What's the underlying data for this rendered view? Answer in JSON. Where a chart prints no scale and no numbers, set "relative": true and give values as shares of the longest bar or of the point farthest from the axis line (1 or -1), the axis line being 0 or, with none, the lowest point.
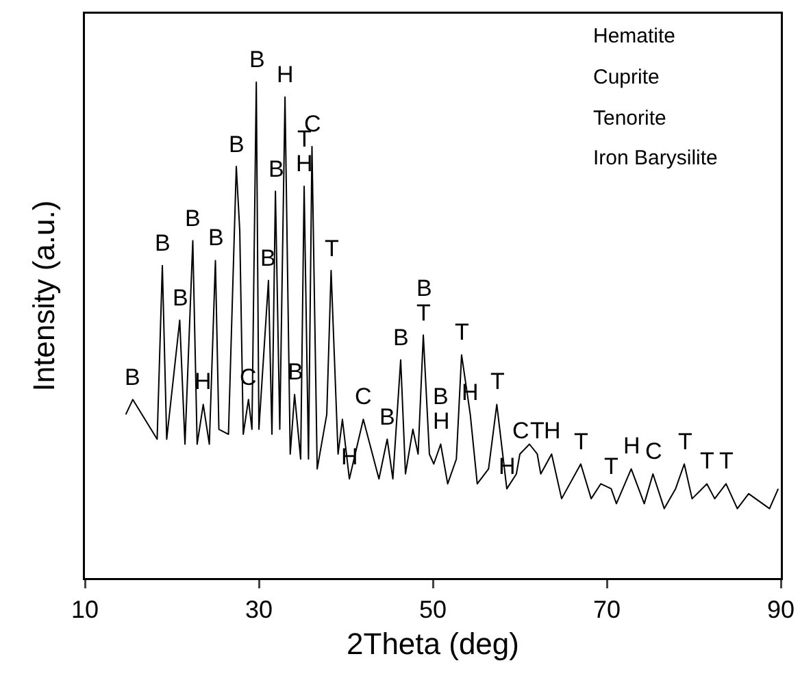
{
  "chart_data": {
    "type": "line",
    "relative": true,
    "xlabel": "2Theta (deg)",
    "ylabel": "Intensity (a.u.)",
    "xlim": [
      10,
      90
    ],
    "xticks": [
      10,
      30,
      50,
      70,
      90
    ],
    "grid": false,
    "marker": "none",
    "line_style": "solid",
    "series": [
      {
        "color": "#000000",
        "x": [
          14.7,
          15.5,
          18.3,
          18.9,
          19.4,
          20.9,
          21.5,
          22.4,
          22.9,
          23.6,
          24.3,
          25.0,
          25.4,
          26.5,
          27.4,
          27.8,
          28.2,
          28.8,
          29.2,
          29.7,
          30.0,
          31.1,
          31.5,
          31.9,
          32.4,
          33.0,
          33.6,
          34.1,
          34.8,
          35.2,
          35.7,
          36.1,
          36.7,
          37.8,
          38.3,
          39.1,
          39.6,
          40.4,
          42.0,
          43.8,
          44.75,
          45.4,
          46.3,
          46.85,
          47.7,
          48.3,
          48.9,
          49.6,
          50.1,
          50.9,
          51.7,
          52.7,
          53.3,
          54.3,
          55.1,
          56.4,
          57.35,
          58.5,
          59.6,
          60.0,
          61.1,
          62.0,
          62.4,
          63.65,
          64.8,
          67.0,
          68.2,
          69.3,
          70.5,
          71.1,
          72.8,
          74.3,
          75.3,
          76.6,
          77.9,
          78.9,
          79.8,
          81.5,
          82.4,
          83.7,
          85.0,
          86.3,
          88.7,
          89.7
        ],
        "values": [
          0.33,
          0.36,
          0.28,
          0.63,
          0.28,
          0.52,
          0.27,
          0.68,
          0.27,
          0.35,
          0.27,
          0.64,
          0.3,
          0.29,
          0.83,
          0.7,
          0.29,
          0.36,
          0.3,
          1.0,
          0.3,
          0.6,
          0.29,
          0.78,
          0.3,
          0.97,
          0.25,
          0.37,
          0.24,
          0.79,
          0.24,
          0.87,
          0.22,
          0.33,
          0.62,
          0.25,
          0.32,
          0.2,
          0.32,
          0.2,
          0.28,
          0.2,
          0.44,
          0.21,
          0.3,
          0.25,
          0.49,
          0.25,
          0.23,
          0.27,
          0.19,
          0.24,
          0.45,
          0.33,
          0.19,
          0.22,
          0.35,
          0.18,
          0.21,
          0.25,
          0.27,
          0.25,
          0.21,
          0.25,
          0.16,
          0.23,
          0.16,
          0.19,
          0.18,
          0.15,
          0.22,
          0.15,
          0.21,
          0.14,
          0.18,
          0.23,
          0.16,
          0.19,
          0.16,
          0.19,
          0.14,
          0.17,
          0.14,
          0.18
        ]
      }
    ],
    "annotations": [
      "Hematite",
      "Cuprite",
      "Tenorite",
      "Iron Barysilite",
      {
        "text": "B",
        "x": 15.5,
        "y": 0.36
      },
      {
        "text": "B",
        "x": 18.9,
        "y": 0.63
      },
      {
        "text": "B",
        "x": 20.9,
        "y": 0.52
      },
      {
        "text": "B",
        "x": 22.4,
        "y": 0.68
      },
      {
        "text": "H",
        "x": 23.6,
        "y": 0.35
      },
      {
        "text": "B",
        "x": 25.0,
        "y": 0.64
      },
      {
        "text": "B",
        "x": 27.4,
        "y": 0.83
      },
      {
        "text": "C",
        "x": 28.8,
        "y": 0.36
      },
      {
        "text": "B",
        "x": 29.7,
        "y": 1.0
      },
      {
        "text": "B",
        "x": 31.1,
        "y": 0.6
      },
      {
        "text": "B",
        "x": 31.9,
        "y": 0.78
      },
      {
        "text": "H",
        "x": 33.0,
        "y": 0.97
      },
      {
        "text": "B",
        "x": 34.1,
        "y": 0.37
      },
      {
        "text": "H",
        "x": 35.2,
        "y": 0.79
      },
      {
        "text": "T",
        "x": 35.2,
        "y": 0.79
      },
      {
        "text": "C",
        "x": 36.1,
        "y": 0.87
      },
      {
        "text": "T",
        "x": 38.3,
        "y": 0.62
      },
      {
        "text": "H",
        "x": 40.4,
        "y": 0.2
      },
      {
        "text": "C",
        "x": 42.0,
        "y": 0.32
      },
      {
        "text": "B",
        "x": 44.75,
        "y": 0.28
      },
      {
        "text": "B",
        "x": 46.3,
        "y": 0.44
      },
      {
        "text": "T",
        "x": 48.9,
        "y": 0.49
      },
      {
        "text": "B",
        "x": 48.9,
        "y": 0.49
      },
      {
        "text": "H",
        "x": 50.9,
        "y": 0.27
      },
      {
        "text": "B",
        "x": 50.9,
        "y": 0.27
      },
      {
        "text": "T",
        "x": 53.3,
        "y": 0.45
      },
      {
        "text": "H",
        "x": 54.3,
        "y": 0.33
      },
      {
        "text": "T",
        "x": 57.35,
        "y": 0.35
      },
      {
        "text": "H",
        "x": 58.5,
        "y": 0.18
      },
      {
        "text": "C",
        "x": 60.0,
        "y": 0.25
      },
      {
        "text": "T",
        "x": 62.0,
        "y": 0.25
      },
      {
        "text": "H",
        "x": 63.65,
        "y": 0.25
      },
      {
        "text": "T",
        "x": 67.0,
        "y": 0.23
      },
      {
        "text": "T",
        "x": 70.5,
        "y": 0.18
      },
      {
        "text": "H",
        "x": 72.8,
        "y": 0.22
      },
      {
        "text": "C",
        "x": 75.3,
        "y": 0.21
      },
      {
        "text": "T",
        "x": 78.9,
        "y": 0.23
      },
      {
        "text": "T",
        "x": 81.5,
        "y": 0.19
      },
      {
        "text": "T",
        "x": 83.7,
        "y": 0.19
      }
    ]
  }
}
